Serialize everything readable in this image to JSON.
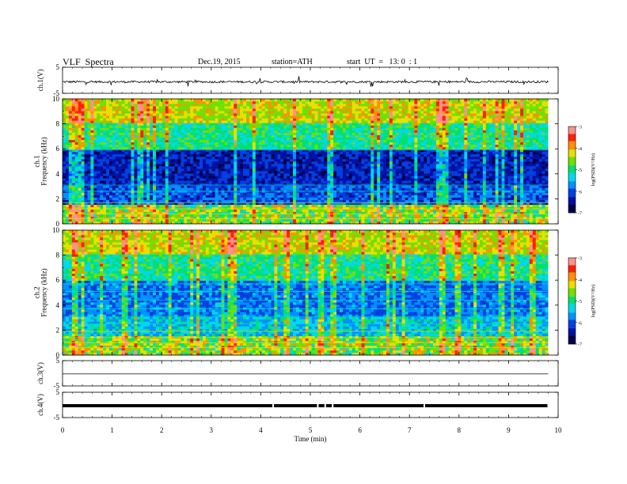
{
  "header": {
    "title": "VLF  Spectra",
    "date": "Dec.19, 2015",
    "station": "station=ATH",
    "start": "start  UT  =   13: 0  : 1"
  },
  "chart_data": [
    {
      "type": "line",
      "panel": "ch1",
      "ylabel": "ch.1(V)",
      "ylim": [
        -5,
        5
      ],
      "yticks": [
        "5",
        "-5"
      ],
      "x_unit": "min",
      "xlim": [
        0,
        10
      ],
      "series": [
        {
          "x": [
            0.0,
            1.0,
            2.0,
            3.0,
            4.0,
            5.0,
            6.0,
            7.0,
            8.0,
            9.0,
            9.8
          ],
          "values": [
            -0.6,
            -0.7,
            -0.6,
            -0.7,
            -0.6,
            -0.7,
            -0.6,
            -0.7,
            -0.6,
            -0.7,
            -0.6
          ]
        }
      ],
      "color": "#000000"
    },
    {
      "type": "heatmap",
      "panel": "ch1-spectrogram",
      "ylabel": "ch.1\nFrequency  (kHz)",
      "ylim": [
        0,
        10
      ],
      "yticks": [
        "0",
        "2",
        "4",
        "6",
        "8",
        "10"
      ],
      "xlim": [
        0,
        10
      ],
      "colorbar": {
        "label": "log(PSD)(V²/Hz)",
        "range": [
          -7,
          -3
        ],
        "ticks": [
          "-3",
          "-4",
          "-5",
          "-6",
          "-7"
        ]
      }
    },
    {
      "type": "heatmap",
      "panel": "ch2-spectrogram",
      "ylabel": "ch.2\nFrequency  (kHz)",
      "ylim": [
        0,
        10
      ],
      "yticks": [
        "0",
        "2",
        "4",
        "6",
        "8",
        "10"
      ],
      "xlim": [
        0,
        10
      ],
      "colorbar": {
        "label": "log(PSD)(V²/Hz)",
        "range": [
          -7,
          -3
        ],
        "ticks": [
          "-3",
          "-4",
          "-5",
          "-6",
          "-7"
        ]
      }
    },
    {
      "type": "line",
      "panel": "ch3",
      "ylabel": "ch.3(V)",
      "ylim": [
        -5,
        5
      ],
      "yticks": [
        "5",
        "-5"
      ],
      "series": [
        {
          "x": [
            0,
            9.8
          ],
          "values": [
            -0.2,
            -0.2
          ]
        }
      ],
      "color": "#808080"
    },
    {
      "type": "line",
      "panel": "ch4",
      "ylabel": "ch.4(V)",
      "ylim": [
        -5,
        5
      ],
      "yticks": [
        "5",
        "-5"
      ],
      "series": [
        {
          "x": [
            0,
            9.8
          ],
          "values": [
            -0.3,
            -0.3
          ]
        }
      ],
      "color": "#000000"
    }
  ],
  "xaxis": {
    "label": "Time  (min)",
    "ticks": [
      "0",
      "1",
      "2",
      "3",
      "4",
      "5",
      "6",
      "7",
      "8",
      "9",
      "10"
    ],
    "range": [
      0,
      10
    ]
  },
  "colormap": [
    "#000000",
    "#00004a",
    "#0010a0",
    "#0040e0",
    "#0090ff",
    "#00d8e8",
    "#00e070",
    "#70e000",
    "#e8e000",
    "#ff9000",
    "#ff2000",
    "#ff9090"
  ]
}
